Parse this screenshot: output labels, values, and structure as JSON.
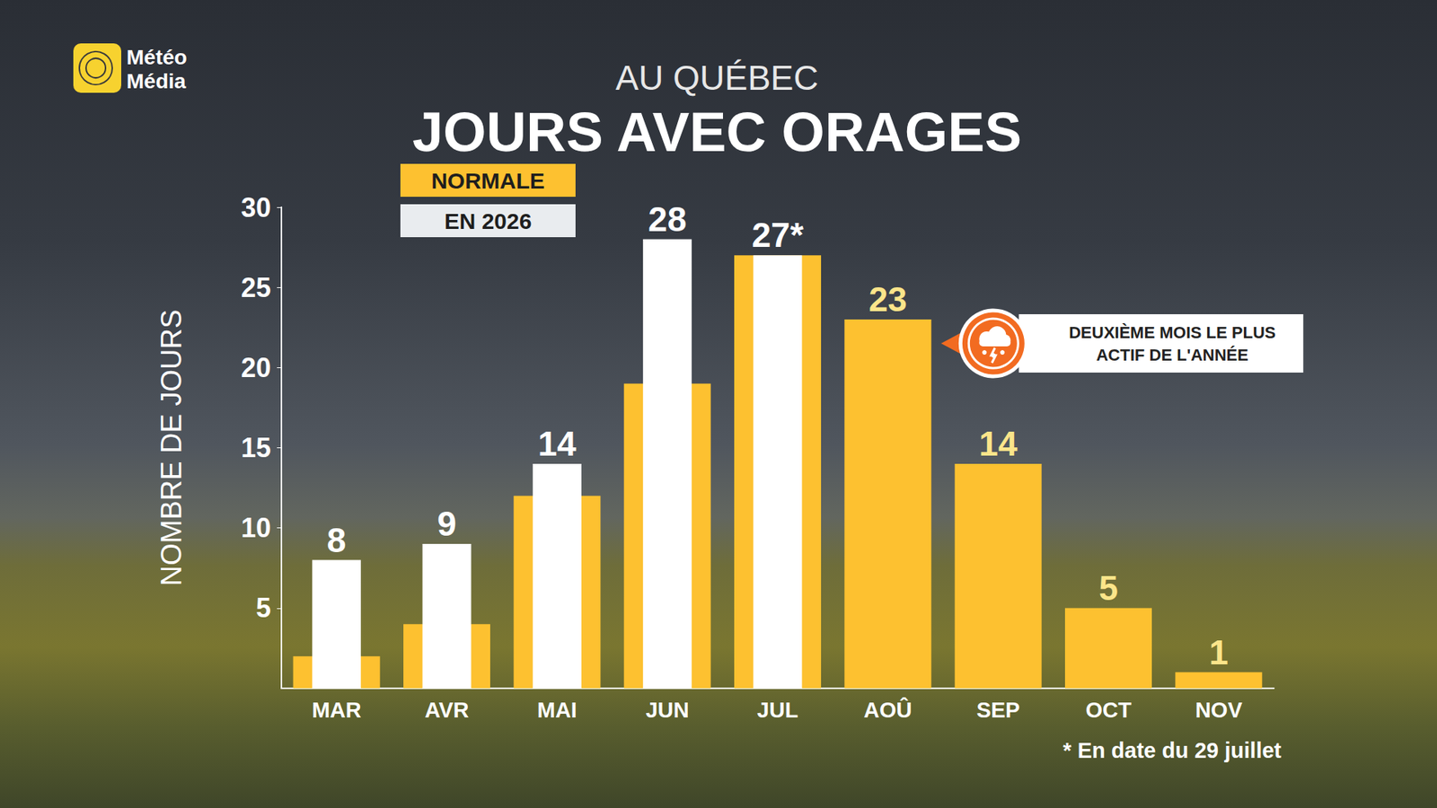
{
  "chart_data": {
    "type": "bar",
    "brand": "Météo Média",
    "supertitle": "AU QUÉBEC",
    "title": "JOURS AVEC ORAGES",
    "y_label": "NOMBRE DE JOURS",
    "categories": [
      "MAR",
      "AVR",
      "MAI",
      "JUN",
      "JUL",
      "AOÛ",
      "SEP",
      "OCT",
      "NOV"
    ],
    "series": [
      {
        "name": "NORMALE",
        "color": "#fdc130",
        "values": [
          2,
          4,
          12,
          19,
          27,
          23,
          14,
          5,
          1
        ],
        "data_labels": true,
        "value_labels": [
          null,
          null,
          null,
          null,
          null,
          "23",
          "14",
          "5",
          "1"
        ]
      },
      {
        "name": "EN 2026",
        "color": "#ffffff",
        "values": [
          8,
          9,
          14,
          28,
          27,
          null,
          null,
          null,
          null
        ],
        "data_labels": true,
        "value_labels": [
          "8",
          "9",
          "14",
          "28",
          "27*",
          null,
          null,
          null,
          null
        ]
      }
    ],
    "ylim": [
      0,
      30
    ],
    "yticks": [
      5,
      10,
      15,
      20,
      25,
      30
    ],
    "grid": false,
    "legend": "top-left",
    "annotation": {
      "text": "DEUXIÈME MOIS LE PLUS ACTIF DE L'ANNÉE",
      "category": "AOÛ"
    },
    "footnote": "* En date du 29 juillet"
  }
}
